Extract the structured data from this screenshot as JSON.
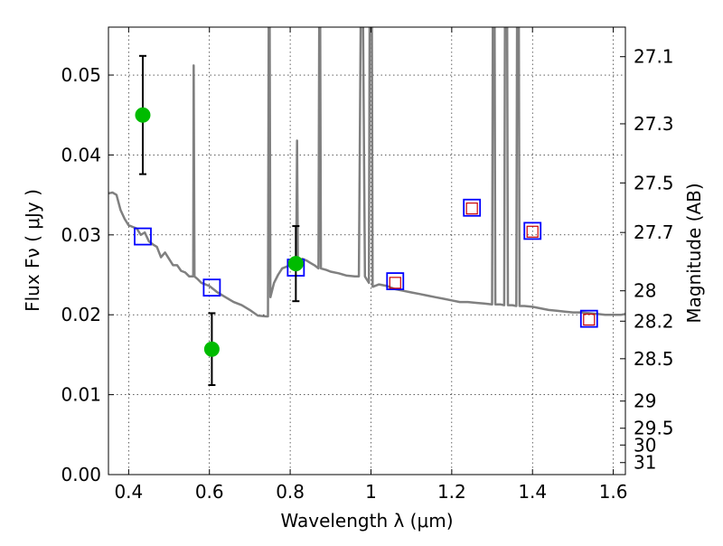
{
  "chart_data": {
    "type": "scatter",
    "xlabel": "Wavelength  λ (μm)",
    "ylabel": "Flux  Fν  ( μJy )",
    "ylabel_right": "Magnitude (AB)",
    "xlim": [
      0.35,
      1.63
    ],
    "ylim": [
      0.0,
      0.056
    ],
    "x_ticks": [
      0.4,
      0.6,
      0.8,
      1.0,
      1.2,
      1.4,
      1.6
    ],
    "x_tick_labels": [
      "0.4",
      "0.6",
      "0.8",
      "1",
      "1.2",
      "1.4",
      "1.6"
    ],
    "y_ticks": [
      0.0,
      0.01,
      0.02,
      0.03,
      0.04,
      0.05
    ],
    "y_tick_labels": [
      "0.00",
      "0.01",
      "0.02",
      "0.03",
      "0.04",
      "0.05"
    ],
    "right_ticks": [
      {
        "label": "27.1",
        "flux": 0.0523
      },
      {
        "label": "27.3",
        "flux": 0.0439
      },
      {
        "label": "27.5",
        "flux": 0.0365
      },
      {
        "label": "27.7",
        "flux": 0.0303
      },
      {
        "label": "28",
        "flux": 0.023
      },
      {
        "label": "28.2",
        "flux": 0.0192
      },
      {
        "label": "28.5",
        "flux": 0.0145
      },
      {
        "label": "29",
        "flux": 0.0092
      },
      {
        "label": "29.5",
        "flux": 0.0058
      },
      {
        "label": "30",
        "flux": 0.0037
      },
      {
        "label": "31",
        "flux": 0.0015
      }
    ],
    "grid": true,
    "colors": {
      "model": "#808080",
      "observed": "#00bb00",
      "errorbar": "#000000",
      "model_band_box": "#0000ff",
      "small_box": "#cc0000"
    },
    "series": [
      {
        "kind": "model_spectrum",
        "points": [
          [
            0.35,
            0.0352
          ],
          [
            0.36,
            0.0353
          ],
          [
            0.37,
            0.035
          ],
          [
            0.38,
            0.0331
          ],
          [
            0.39,
            0.032
          ],
          [
            0.4,
            0.0312
          ],
          [
            0.41,
            0.031
          ],
          [
            0.42,
            0.0308
          ],
          [
            0.43,
            0.03
          ],
          [
            0.44,
            0.0303
          ],
          [
            0.45,
            0.0292
          ],
          [
            0.46,
            0.0288
          ],
          [
            0.47,
            0.0285
          ],
          [
            0.48,
            0.0272
          ],
          [
            0.49,
            0.0278
          ],
          [
            0.5,
            0.027
          ],
          [
            0.51,
            0.0262
          ],
          [
            0.52,
            0.0262
          ],
          [
            0.53,
            0.0255
          ],
          [
            0.54,
            0.0253
          ],
          [
            0.55,
            0.0248
          ],
          [
            0.56,
            0.0248
          ],
          [
            0.561,
            0.0512
          ],
          [
            0.563,
            0.0248
          ],
          [
            0.57,
            0.0245
          ],
          [
            0.58,
            0.024
          ],
          [
            0.59,
            0.0238
          ],
          [
            0.6,
            0.0236
          ],
          [
            0.62,
            0.0228
          ],
          [
            0.64,
            0.0222
          ],
          [
            0.66,
            0.0216
          ],
          [
            0.68,
            0.0212
          ],
          [
            0.7,
            0.0206
          ],
          [
            0.72,
            0.0199
          ],
          [
            0.74,
            0.0198
          ],
          [
            0.745,
            0.0198
          ],
          [
            0.747,
            0.06
          ],
          [
            0.749,
            0.06
          ],
          [
            0.751,
            0.0222
          ],
          [
            0.76,
            0.024
          ],
          [
            0.77,
            0.025
          ],
          [
            0.78,
            0.0258
          ],
          [
            0.79,
            0.026
          ],
          [
            0.8,
            0.0262
          ],
          [
            0.81,
            0.0265
          ],
          [
            0.815,
            0.0265
          ],
          [
            0.817,
            0.0418
          ],
          [
            0.819,
            0.0265
          ],
          [
            0.83,
            0.027
          ],
          [
            0.84,
            0.0268
          ],
          [
            0.85,
            0.0265
          ],
          [
            0.86,
            0.0262
          ],
          [
            0.87,
            0.0258
          ],
          [
            0.872,
            0.06
          ],
          [
            0.874,
            0.06
          ],
          [
            0.876,
            0.0258
          ],
          [
            0.89,
            0.0256
          ],
          [
            0.9,
            0.0254
          ],
          [
            0.92,
            0.0252
          ],
          [
            0.94,
            0.0249
          ],
          [
            0.96,
            0.0248
          ],
          [
            0.97,
            0.0248
          ],
          [
            0.975,
            0.06
          ],
          [
            0.98,
            0.06
          ],
          [
            0.985,
            0.0248
          ],
          [
            0.995,
            0.024
          ],
          [
            0.997,
            0.06
          ],
          [
            1.002,
            0.06
          ],
          [
            1.004,
            0.0235
          ],
          [
            1.02,
            0.0238
          ],
          [
            1.04,
            0.0236
          ],
          [
            1.06,
            0.0232
          ],
          [
            1.08,
            0.023
          ],
          [
            1.1,
            0.0228
          ],
          [
            1.12,
            0.0226
          ],
          [
            1.14,
            0.0224
          ],
          [
            1.16,
            0.0222
          ],
          [
            1.18,
            0.022
          ],
          [
            1.2,
            0.0218
          ],
          [
            1.22,
            0.0216
          ],
          [
            1.24,
            0.0216
          ],
          [
            1.26,
            0.0215
          ],
          [
            1.28,
            0.0214
          ],
          [
            1.3,
            0.0213
          ],
          [
            1.302,
            0.06
          ],
          [
            1.306,
            0.06
          ],
          [
            1.308,
            0.0213
          ],
          [
            1.32,
            0.0213
          ],
          [
            1.33,
            0.0212
          ],
          [
            1.332,
            0.06
          ],
          [
            1.337,
            0.06
          ],
          [
            1.339,
            0.0212
          ],
          [
            1.35,
            0.0212
          ],
          [
            1.36,
            0.0211
          ],
          [
            1.362,
            0.06
          ],
          [
            1.366,
            0.06
          ],
          [
            1.368,
            0.0211
          ],
          [
            1.38,
            0.0211
          ],
          [
            1.4,
            0.021
          ],
          [
            1.42,
            0.0208
          ],
          [
            1.44,
            0.0206
          ],
          [
            1.46,
            0.0205
          ],
          [
            1.48,
            0.0204
          ],
          [
            1.5,
            0.0203
          ],
          [
            1.52,
            0.0203
          ],
          [
            1.54,
            0.0202
          ],
          [
            1.56,
            0.0201
          ],
          [
            1.58,
            0.02
          ],
          [
            1.6,
            0.02
          ],
          [
            1.62,
            0.02
          ],
          [
            1.63,
            0.0201
          ]
        ]
      },
      {
        "kind": "observed_with_errors",
        "points": [
          {
            "x": 0.435,
            "y": 0.045,
            "err": 0.0074
          },
          {
            "x": 0.606,
            "y": 0.0157,
            "err": 0.0045
          },
          {
            "x": 0.814,
            "y": 0.0264,
            "err": 0.0047
          }
        ]
      },
      {
        "kind": "model_band_fluxes",
        "points": [
          {
            "x": 0.435,
            "y": 0.0298
          },
          {
            "x": 0.606,
            "y": 0.0234
          },
          {
            "x": 0.814,
            "y": 0.0259
          },
          {
            "x": 1.06,
            "y": 0.0242
          },
          {
            "x": 1.25,
            "y": 0.0334
          },
          {
            "x": 1.4,
            "y": 0.0305
          },
          {
            "x": 1.54,
            "y": 0.0195
          }
        ]
      },
      {
        "kind": "small_boxes",
        "points": [
          {
            "x": 1.06,
            "y": 0.024
          },
          {
            "x": 1.25,
            "y": 0.0333
          },
          {
            "x": 1.4,
            "y": 0.0304
          },
          {
            "x": 1.54,
            "y": 0.0194
          }
        ]
      }
    ]
  }
}
